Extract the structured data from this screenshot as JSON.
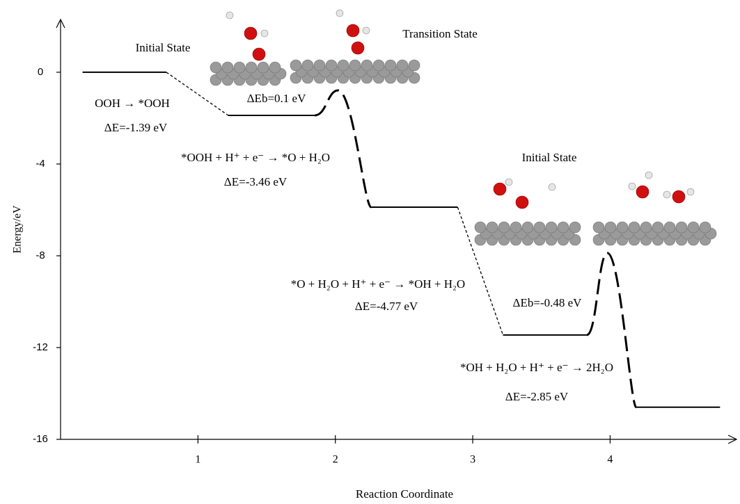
{
  "chart_data": {
    "type": "energy_profile",
    "x_label": "Reaction Coordinate",
    "y_label": "Energy/eV",
    "xlim": [
      0,
      4.92
    ],
    "xticks": [
      1,
      2,
      3,
      4
    ],
    "ylim": [
      -16,
      2.3
    ],
    "yticks": [
      0,
      -4,
      -8,
      -12,
      -16
    ],
    "color": "#000000",
    "levels": [
      {
        "x_start": 0.16,
        "x_end": 0.77,
        "energy": 0
      },
      {
        "x_start": 1.22,
        "x_end": 1.85,
        "energy": -1.88
      },
      {
        "x_start": 2.26,
        "x_end": 2.89,
        "energy": -5.88
      },
      {
        "x_start": 3.22,
        "x_end": 3.83,
        "energy": -11.45
      },
      {
        "x_start": 4.19,
        "x_end": 4.8,
        "energy": -14.6
      }
    ],
    "transition_states": [
      {
        "x": 2.02,
        "energy": -0.79
      },
      {
        "x": 3.98,
        "energy": -7.88
      }
    ],
    "annotations": [
      "Initial State",
      "Transition State",
      "OOH → *OOH",
      "ΔE=-1.39 eV",
      "ΔEb=0.1 eV",
      "*OOH + H⁺ + e⁻ → *O + H₂O",
      "ΔE=-3.46 eV",
      "Initial State",
      "*O + H₂O + H⁺ + e⁻ → *OH + H₂O",
      "ΔE=-4.77 eV",
      "ΔEb=-0.48 eV",
      "*OH + H₂O + H⁺ + e⁻ → 2H₂O",
      "ΔE=-2.85 eV"
    ]
  }
}
